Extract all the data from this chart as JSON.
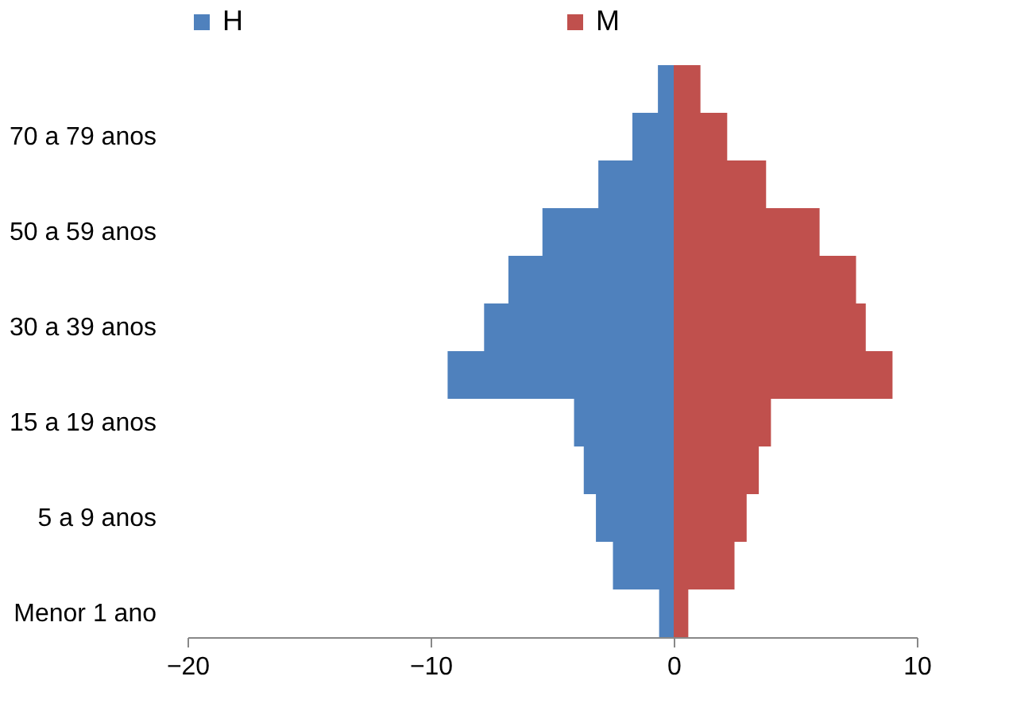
{
  "chart_data": {
    "type": "bar",
    "orientation": "horizontal",
    "stacked": true,
    "categories": [
      null,
      "70 a 79 anos",
      null,
      "50 a 59 anos",
      null,
      "30 a 39 anos",
      null,
      "15 a 19 anos",
      null,
      "5 a 9 anos",
      null,
      "Menor 1 ano"
    ],
    "series": [
      {
        "name": "H",
        "color": "#4f81bd",
        "values": [
          -0.65,
          -1.7,
          -3.1,
          -5.4,
          -6.8,
          -7.8,
          -9.3,
          -4.1,
          -3.7,
          -3.2,
          -2.5,
          -0.6
        ]
      },
      {
        "name": "M",
        "color": "#c0504d",
        "values": [
          1.1,
          2.2,
          3.8,
          6.0,
          7.5,
          7.9,
          9.0,
          4.0,
          3.5,
          3.0,
          2.5,
          0.6
        ]
      }
    ],
    "xlim": [
      -20,
      10
    ],
    "xticks": [
      -20,
      -10,
      0,
      10
    ],
    "grid": false,
    "legend": "top"
  }
}
